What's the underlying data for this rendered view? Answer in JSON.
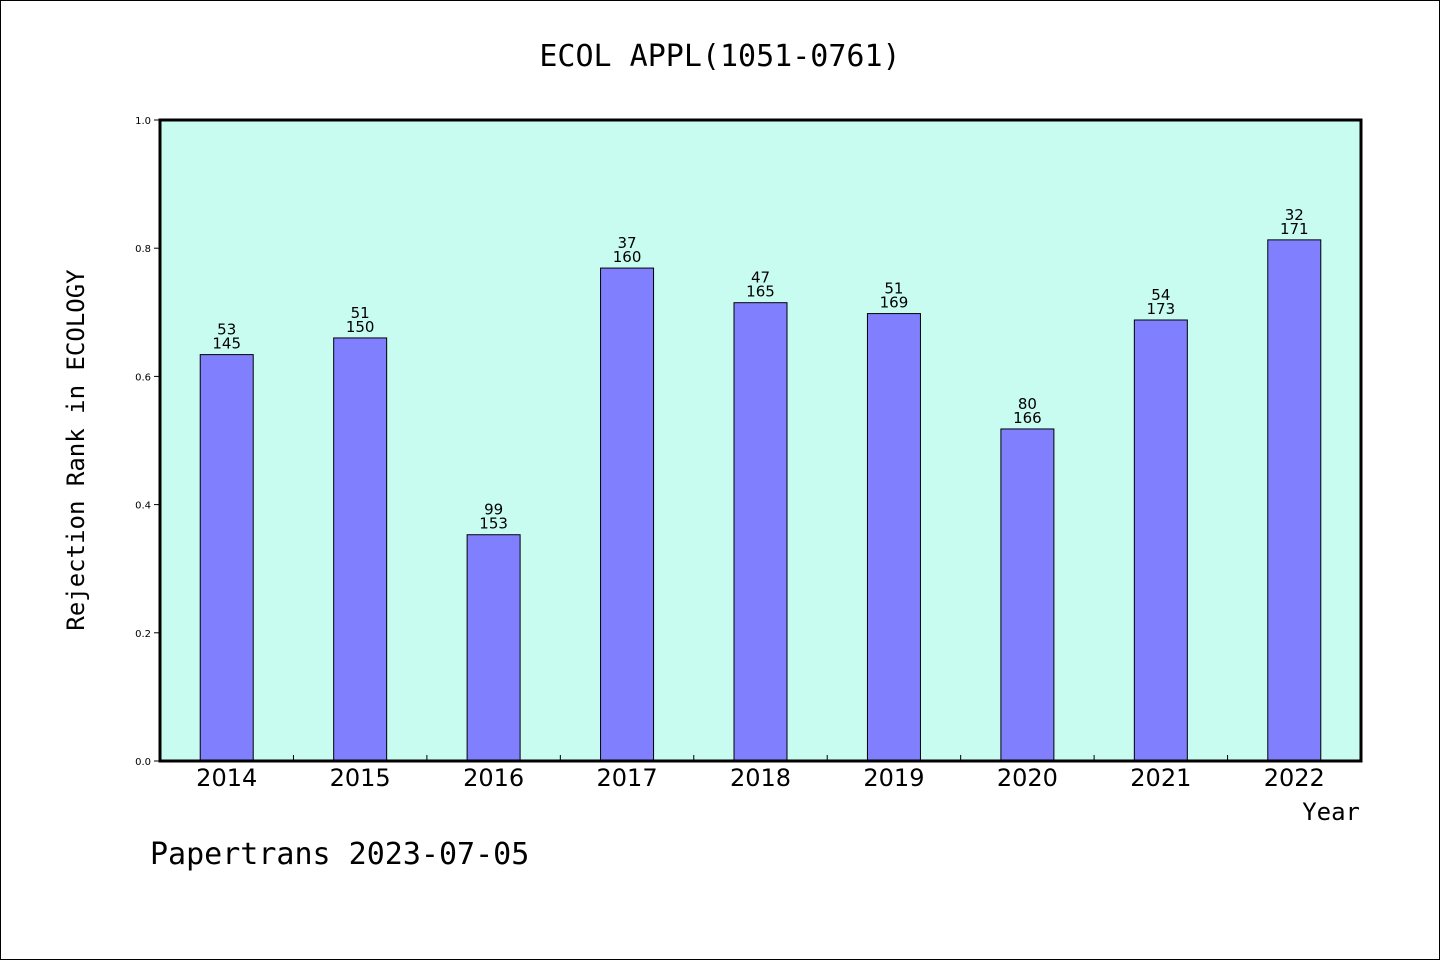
{
  "chart_data": {
    "type": "bar",
    "title": "ECOL APPL(1051-0761)",
    "xlabel": "Year",
    "ylabel": "Rejection Rank in ECOLOGY",
    "ylim": [
      0,
      1.0
    ],
    "yticks": [
      "0.0",
      "0.2",
      "0.4",
      "0.6",
      "0.8",
      "1.0"
    ],
    "grid": false,
    "categories": [
      "2014",
      "2015",
      "2016",
      "2017",
      "2018",
      "2019",
      "2020",
      "2021",
      "2022"
    ],
    "values": [
      0.634,
      0.66,
      0.353,
      0.769,
      0.715,
      0.698,
      0.518,
      0.688,
      0.813
    ],
    "labels_top": [
      "53",
      "51",
      "99",
      "37",
      "47",
      "51",
      "80",
      "54",
      "32"
    ],
    "labels_bottom": [
      "145",
      "150",
      "153",
      "160",
      "165",
      "169",
      "166",
      "173",
      "171"
    ],
    "colors": {
      "plot_background": "#c8fcf0",
      "bar": "#8080ff",
      "bar_edge": "#000000"
    }
  },
  "footer": {
    "credit": "Papertrans 2023-07-05"
  }
}
